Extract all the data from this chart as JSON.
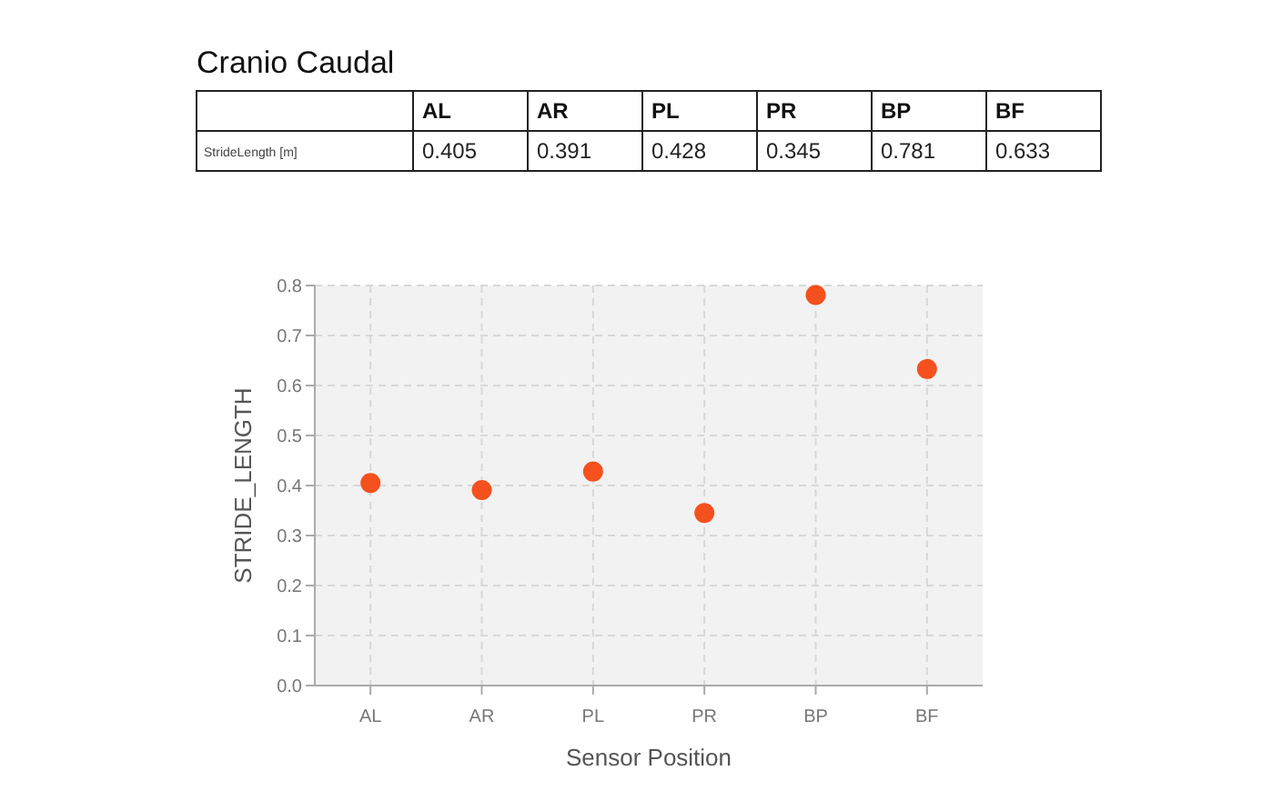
{
  "chart_data": [
    {
      "type": "other",
      "title": "Cranio Caudal",
      "categories": [
        "AL",
        "AR",
        "PL",
        "PR",
        "BP",
        "BF"
      ],
      "values": [
        0.405,
        0.391,
        0.428,
        0.345,
        0.781,
        0.633
      ],
      "data_labels": true,
      "annotations": [
        "StrideLength [m]"
      ]
    },
    {
      "type": "scatter",
      "xlabel": "Sensor Position",
      "ylabel": "STRIDE_LENGTH",
      "categories": [
        "AL",
        "AR",
        "PL",
        "PR",
        "BP",
        "BF"
      ],
      "series": [
        {
          "color": "#f4511e",
          "values": [
            0.405,
            0.391,
            0.428,
            0.345,
            0.781,
            0.633
          ]
        }
      ],
      "ylim": [
        0,
        0.8
      ],
      "yticks": [
        {
          "value": 0,
          "label": "0.0"
        },
        0.1,
        0.2,
        0.3,
        0.4,
        0.5,
        0.6,
        0.7,
        0.8
      ],
      "grid": true,
      "marker": "circle"
    }
  ]
}
